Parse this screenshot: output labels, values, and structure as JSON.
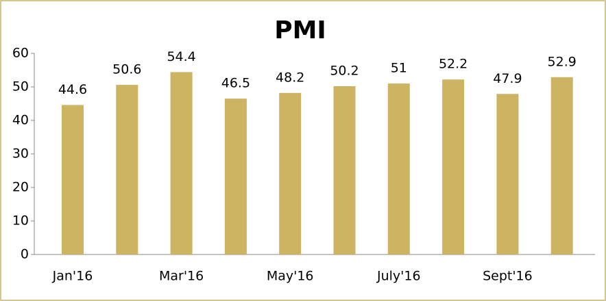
{
  "chart_data": {
    "type": "bar",
    "title": "PMI",
    "categories": [
      "Jan'16",
      null,
      "Mar'16",
      null,
      "May'16",
      null,
      "July'16",
      null,
      "Sept'16",
      null
    ],
    "values": [
      44.6,
      50.6,
      54.4,
      46.5,
      48.2,
      50.2,
      51,
      52.2,
      47.9,
      52.9
    ],
    "value_labels": [
      "44.6",
      "50.6",
      "54.4",
      "46.5",
      "48.2",
      "50.2",
      "51",
      "52.2",
      "47.9",
      "52.9"
    ],
    "color": "#cdb462",
    "ylim": [
      0,
      60
    ],
    "yticks": [
      0,
      10,
      20,
      30,
      40,
      50,
      60
    ],
    "grid": false
  }
}
